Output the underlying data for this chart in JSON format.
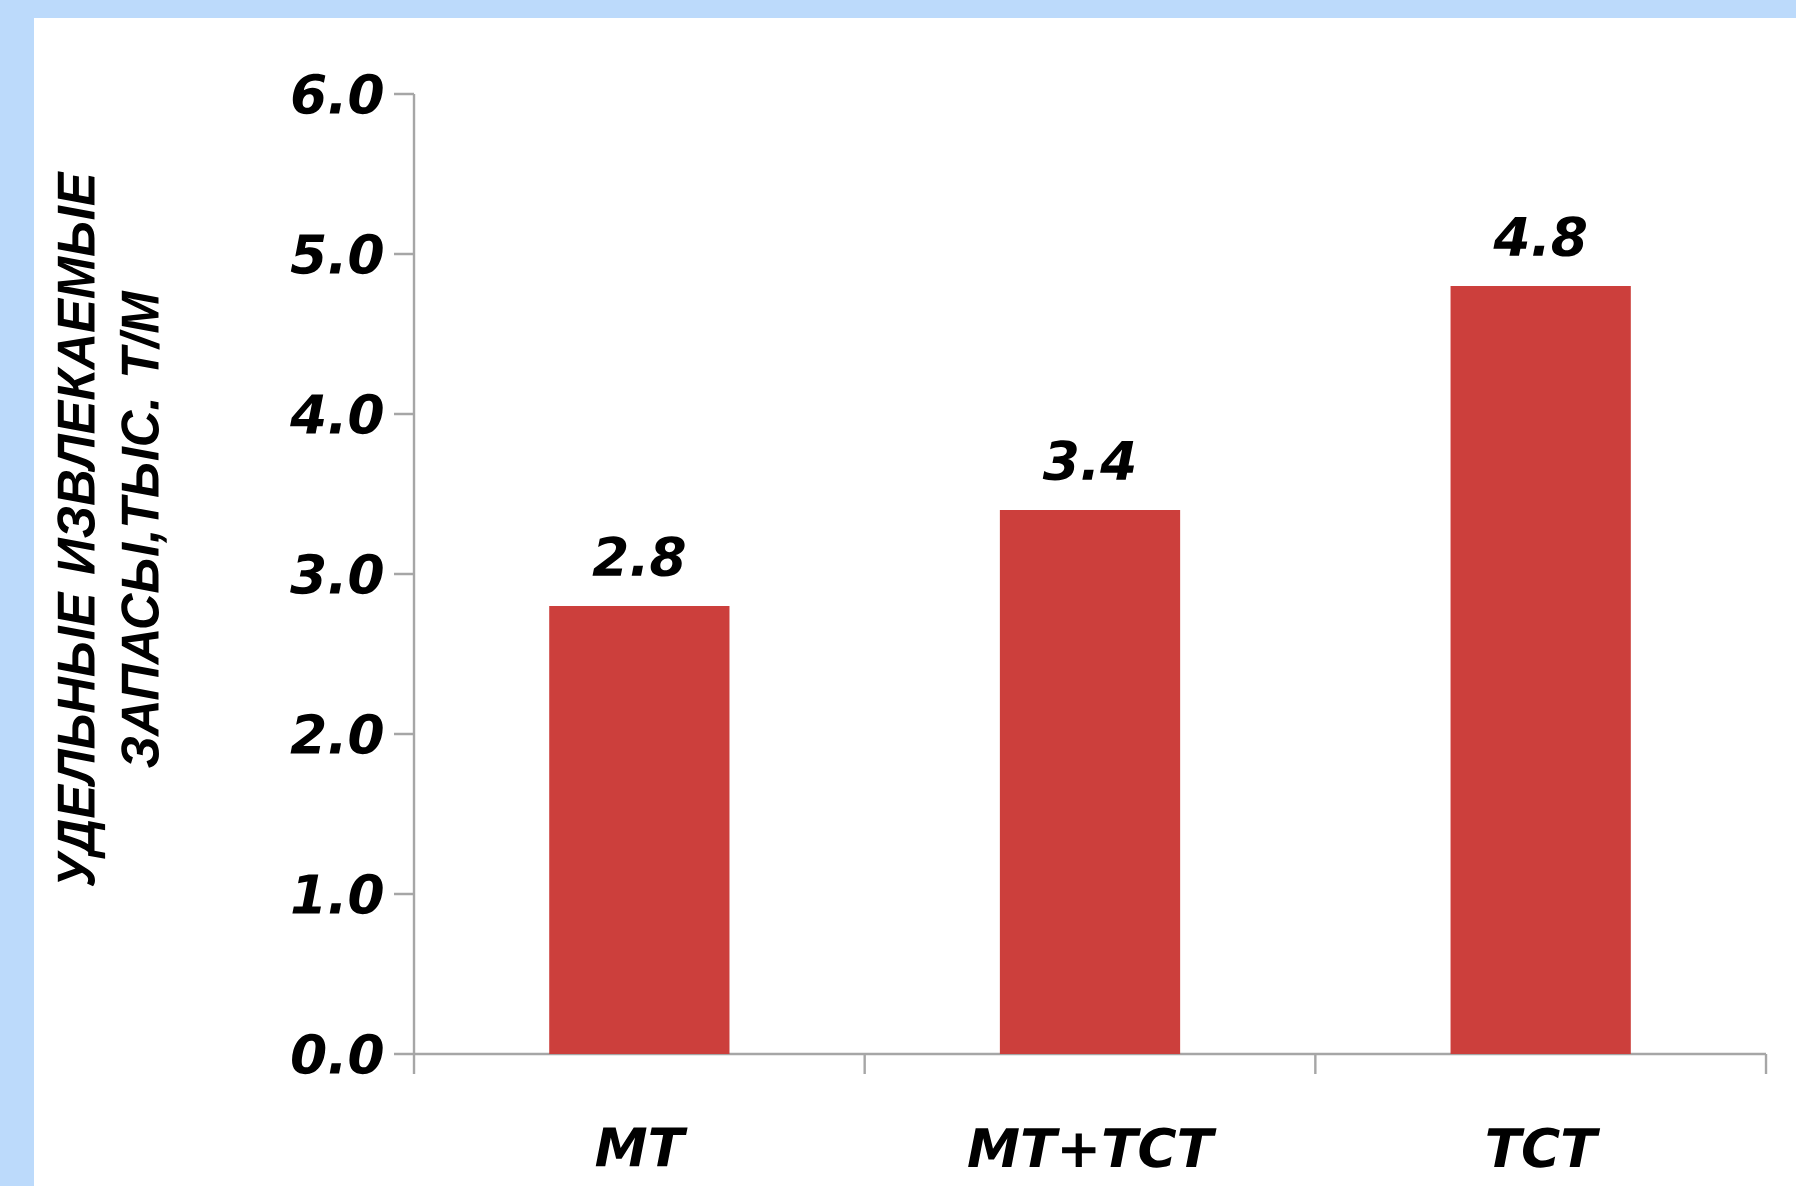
{
  "chart_data": {
    "type": "bar",
    "ylabel": "УДЕЛЬНЫЕ ИЗВЛЕКАЕМЫЕ ЗАПАСЫ,ТЫС. Т/М",
    "categories": [
      "МТ",
      "МТ+ТСТ",
      "ТСТ"
    ],
    "values": [
      2.8,
      3.4,
      4.8
    ],
    "color": "#cc3f3c",
    "ylim": [
      0,
      6
    ],
    "yticks": [
      {
        "value": 0,
        "label": "0.0"
      },
      {
        "value": 1,
        "label": "1.0"
      },
      {
        "value": 2,
        "label": "2.0"
      },
      {
        "value": 3,
        "label": "3.0"
      },
      {
        "value": 4,
        "label": "4.0"
      },
      {
        "value": 5,
        "label": "5.0"
      },
      {
        "value": 6,
        "label": "6.0"
      }
    ],
    "data_labels": true
  }
}
